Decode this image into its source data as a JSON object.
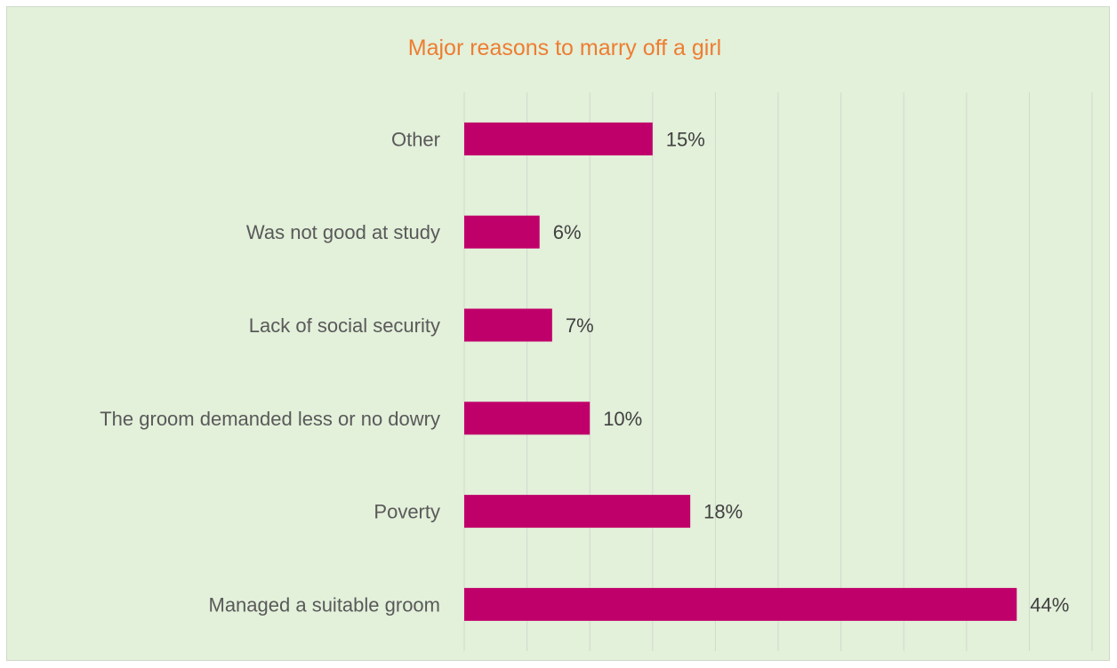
{
  "colors": {
    "background": "#e3f0da",
    "bar": "#c0006a",
    "title": "#ed7d31",
    "grid": "#d3d9cf",
    "category_text": "#595959",
    "value_text": "#404040"
  },
  "chart_data": {
    "type": "bar",
    "orientation": "horizontal",
    "title": "Major reasons to marry off a girl",
    "categories": [
      "Other",
      "Was not good at study",
      "Lack of social security",
      "The groom demanded less or no dowry",
      "Poverty",
      "Managed a suitable groom"
    ],
    "values": [
      15,
      6,
      7,
      10,
      18,
      44
    ],
    "value_labels": [
      "15%",
      "6%",
      "7%",
      "10%",
      "18%",
      "44%"
    ],
    "unit": "%",
    "xlim": [
      0,
      50
    ],
    "gridlines": "vertical",
    "grid_step": 5,
    "legend": "none"
  }
}
